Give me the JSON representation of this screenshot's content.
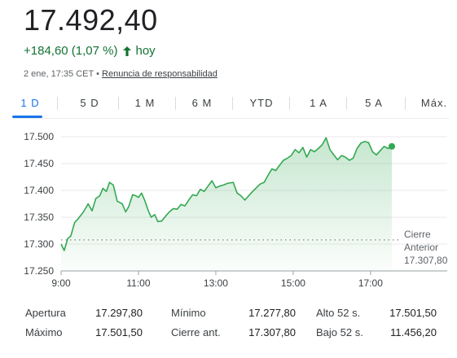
{
  "header": {
    "price": "17.492,40",
    "change": "+184,60 (1,07 %)",
    "change_suffix": "hoy",
    "timestamp": "2 ene, 17:35 CET",
    "separator": "•",
    "disclaimer_link": "Renuncia de responsabilidad",
    "change_color": "#137333"
  },
  "tabs": [
    {
      "label": "1 D",
      "active": true
    },
    {
      "label": "5 D",
      "active": false
    },
    {
      "label": "1 M",
      "active": false
    },
    {
      "label": "6 M",
      "active": false
    },
    {
      "label": "YTD",
      "active": false
    },
    {
      "label": "1 A",
      "active": false
    },
    {
      "label": "5 A",
      "active": false
    },
    {
      "label": "Máx.",
      "active": false
    }
  ],
  "chart_data": {
    "type": "area",
    "x_tick_labels": [
      "9:00",
      "11:00",
      "13:00",
      "15:00",
      "17:00"
    ],
    "y_tick_labels": [
      "17.500",
      "17.450",
      "17.400",
      "17.350",
      "17.300",
      "17.250"
    ],
    "ylim": [
      17250,
      17500
    ],
    "xlim_hours": [
      9.0,
      17.6
    ],
    "grid": true,
    "line_color": "#34a853",
    "fill_color": "#34a853",
    "previous_close": {
      "label_line1": "Cierre",
      "label_line2": "Anterior",
      "value_label": "17.307,80",
      "value": 17307.8
    },
    "series": [
      {
        "x": [
          9.0,
          9.08,
          9.17,
          9.25,
          9.35,
          9.45,
          9.58,
          9.7,
          9.8,
          9.9,
          10.0,
          10.08,
          10.17,
          10.25,
          10.35,
          10.45,
          10.58,
          10.67,
          10.75,
          10.85,
          10.93,
          11.0,
          11.08,
          11.17,
          11.25,
          11.33,
          11.42,
          11.5,
          11.6,
          11.7,
          11.8,
          11.9,
          12.0,
          12.1,
          12.2,
          12.3,
          12.4,
          12.5,
          12.6,
          12.7,
          12.8,
          12.9,
          13.0,
          13.1,
          13.2,
          13.3,
          13.45,
          13.55,
          13.65,
          13.75,
          13.85,
          13.95,
          14.05,
          14.15,
          14.25,
          14.35,
          14.45,
          14.55,
          14.65,
          14.75,
          14.85,
          14.95,
          15.05,
          15.15,
          15.25,
          15.35,
          15.45,
          15.55,
          15.65,
          15.75,
          15.85,
          15.95,
          16.05,
          16.15,
          16.25,
          16.35,
          16.45,
          16.55,
          16.65,
          16.75,
          16.85,
          16.95,
          17.05,
          17.15,
          17.25,
          17.35,
          17.45,
          17.55
        ],
        "values": [
          17300,
          17288,
          17310,
          17315,
          17340,
          17348,
          17360,
          17375,
          17362,
          17385,
          17390,
          17404,
          17398,
          17415,
          17410,
          17380,
          17375,
          17360,
          17370,
          17392,
          17390,
          17387,
          17395,
          17380,
          17363,
          17350,
          17355,
          17342,
          17343,
          17352,
          17360,
          17366,
          17365,
          17374,
          17371,
          17382,
          17392,
          17390,
          17402,
          17398,
          17408,
          17418,
          17405,
          17408,
          17410,
          17413,
          17415,
          17395,
          17390,
          17382,
          17390,
          17398,
          17405,
          17412,
          17415,
          17428,
          17440,
          17437,
          17447,
          17456,
          17460,
          17465,
          17476,
          17470,
          17480,
          17462,
          17476,
          17472,
          17478,
          17485,
          17498,
          17476,
          17466,
          17457,
          17465,
          17462,
          17456,
          17460,
          17478,
          17488,
          17491,
          17489,
          17472,
          17466,
          17474,
          17482,
          17478,
          17482
        ]
      }
    ]
  },
  "stats": {
    "rows": [
      [
        {
          "label": "Apertura",
          "value": "17.297,80"
        },
        {
          "label": "Mínimo",
          "value": "17.277,80"
        },
        {
          "label": "Alto 52 s.",
          "value": "17.501,50"
        }
      ],
      [
        {
          "label": "Máximo",
          "value": "17.501,50"
        },
        {
          "label": "Cierre ant.",
          "value": "17.307,80"
        },
        {
          "label": "Bajo 52 s.",
          "value": "11.456,20"
        }
      ]
    ]
  }
}
